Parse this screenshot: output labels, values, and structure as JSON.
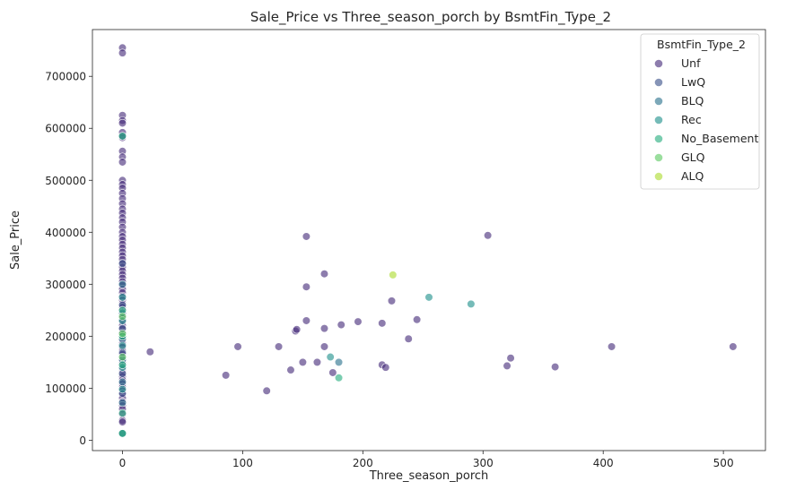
{
  "chart_data": {
    "type": "scatter",
    "title": "Sale_Price vs Three_season_porch by BsmtFin_Type_2",
    "xlabel": "Three_season_porch",
    "ylabel": "Sale_Price",
    "xlim": [
      -25,
      535
    ],
    "ylim": [
      -20000,
      790000
    ],
    "xticks": [
      0,
      100,
      200,
      300,
      400,
      500
    ],
    "yticks": [
      0,
      100000,
      200000,
      300000,
      400000,
      500000,
      600000,
      700000
    ],
    "grid": false,
    "legend": {
      "title": "BsmtFin_Type_2",
      "placement": "top-right"
    },
    "series": [
      {
        "name": "Unf",
        "color": "#472d7b",
        "points": [
          [
            0,
            755000
          ],
          [
            0,
            745000
          ],
          [
            0,
            625000
          ],
          [
            0,
            615000
          ],
          [
            0,
            610000
          ],
          [
            0,
            592000
          ],
          [
            0,
            582000
          ],
          [
            0,
            556000
          ],
          [
            0,
            545000
          ],
          [
            0,
            535000
          ],
          [
            0,
            500000
          ],
          [
            0,
            492000
          ],
          [
            0,
            485000
          ],
          [
            0,
            475000
          ],
          [
            0,
            465000
          ],
          [
            0,
            455000
          ],
          [
            0,
            445000
          ],
          [
            0,
            437000
          ],
          [
            0,
            428000
          ],
          [
            0,
            420000
          ],
          [
            0,
            410000
          ],
          [
            0,
            400000
          ],
          [
            0,
            392000
          ],
          [
            0,
            385000
          ],
          [
            0,
            377000
          ],
          [
            0,
            370000
          ],
          [
            0,
            362000
          ],
          [
            0,
            355000
          ],
          [
            0,
            348000
          ],
          [
            0,
            340000
          ],
          [
            0,
            333000
          ],
          [
            0,
            326000
          ],
          [
            0,
            319000
          ],
          [
            0,
            312000
          ],
          [
            0,
            305000
          ],
          [
            0,
            298000
          ],
          [
            0,
            291000
          ],
          [
            0,
            284000
          ],
          [
            0,
            277000
          ],
          [
            0,
            270000
          ],
          [
            0,
            263000
          ],
          [
            0,
            256000
          ],
          [
            0,
            249000
          ],
          [
            0,
            242000
          ],
          [
            0,
            235000
          ],
          [
            0,
            228000
          ],
          [
            0,
            221000
          ],
          [
            0,
            214000
          ],
          [
            0,
            207000
          ],
          [
            0,
            200000
          ],
          [
            0,
            193000
          ],
          [
            0,
            186000
          ],
          [
            0,
            179000
          ],
          [
            0,
            172000
          ],
          [
            0,
            165000
          ],
          [
            0,
            158000
          ],
          [
            0,
            151000
          ],
          [
            0,
            144000
          ],
          [
            0,
            137000
          ],
          [
            0,
            130000
          ],
          [
            0,
            123000
          ],
          [
            0,
            116000
          ],
          [
            0,
            109000
          ],
          [
            0,
            102000
          ],
          [
            0,
            95000
          ],
          [
            0,
            88000
          ],
          [
            0,
            81000
          ],
          [
            0,
            74000
          ],
          [
            0,
            67000
          ],
          [
            0,
            60000
          ],
          [
            0,
            50000
          ],
          [
            0,
            38000
          ],
          [
            0,
            35000
          ],
          [
            0,
            13000
          ],
          [
            23,
            170000
          ],
          [
            86,
            125000
          ],
          [
            96,
            180000
          ],
          [
            120,
            95000
          ],
          [
            130,
            180000
          ],
          [
            140,
            135000
          ],
          [
            144,
            210000
          ],
          [
            145,
            213000
          ],
          [
            150,
            150000
          ],
          [
            153,
            392000
          ],
          [
            153,
            295000
          ],
          [
            153,
            230000
          ],
          [
            162,
            150000
          ],
          [
            168,
            320000
          ],
          [
            168,
            215000
          ],
          [
            168,
            180000
          ],
          [
            175,
            130000
          ],
          [
            182,
            222000
          ],
          [
            196,
            228000
          ],
          [
            216,
            225000
          ],
          [
            216,
            145000
          ],
          [
            219,
            140000
          ],
          [
            224,
            268000
          ],
          [
            238,
            195000
          ],
          [
            245,
            232000
          ],
          [
            304,
            394000
          ],
          [
            320,
            143000
          ],
          [
            323,
            158000
          ],
          [
            360,
            141000
          ],
          [
            407,
            180000
          ],
          [
            508,
            180000
          ]
        ]
      },
      {
        "name": "LwQ",
        "color": "#3b528b",
        "points": [
          [
            0,
            585000
          ],
          [
            0,
            340000
          ],
          [
            0,
            260000
          ],
          [
            0,
            215000
          ],
          [
            0,
            168000
          ],
          [
            0,
            128000
          ],
          [
            0,
            90000
          ]
        ]
      },
      {
        "name": "BLQ",
        "color": "#2c728e",
        "points": [
          [
            0,
            300000
          ],
          [
            0,
            245000
          ],
          [
            0,
            195000
          ],
          [
            0,
            155000
          ],
          [
            0,
            112000
          ],
          [
            0,
            72000
          ],
          [
            180,
            150000
          ]
        ]
      },
      {
        "name": "Rec",
        "color": "#21918c",
        "points": [
          [
            0,
            275000
          ],
          [
            0,
            230000
          ],
          [
            0,
            182000
          ],
          [
            0,
            140000
          ],
          [
            0,
            98000
          ],
          [
            0,
            13000
          ],
          [
            173,
            160000
          ],
          [
            255,
            275000
          ],
          [
            290,
            262000
          ]
        ]
      },
      {
        "name": "No_Basement",
        "color": "#28ae80",
        "points": [
          [
            0,
            585000
          ],
          [
            0,
            250000
          ],
          [
            0,
            200000
          ],
          [
            0,
            145000
          ],
          [
            0,
            52000
          ],
          [
            0,
            13000
          ],
          [
            180,
            120000
          ]
        ]
      },
      {
        "name": "GLQ",
        "color": "#5ec962",
        "points": [
          [
            0,
            238000
          ],
          [
            0,
            205000
          ],
          [
            0,
            160000
          ]
        ]
      },
      {
        "name": "ALQ",
        "color": "#addc30",
        "points": [
          [
            225,
            318000
          ]
        ]
      }
    ]
  }
}
